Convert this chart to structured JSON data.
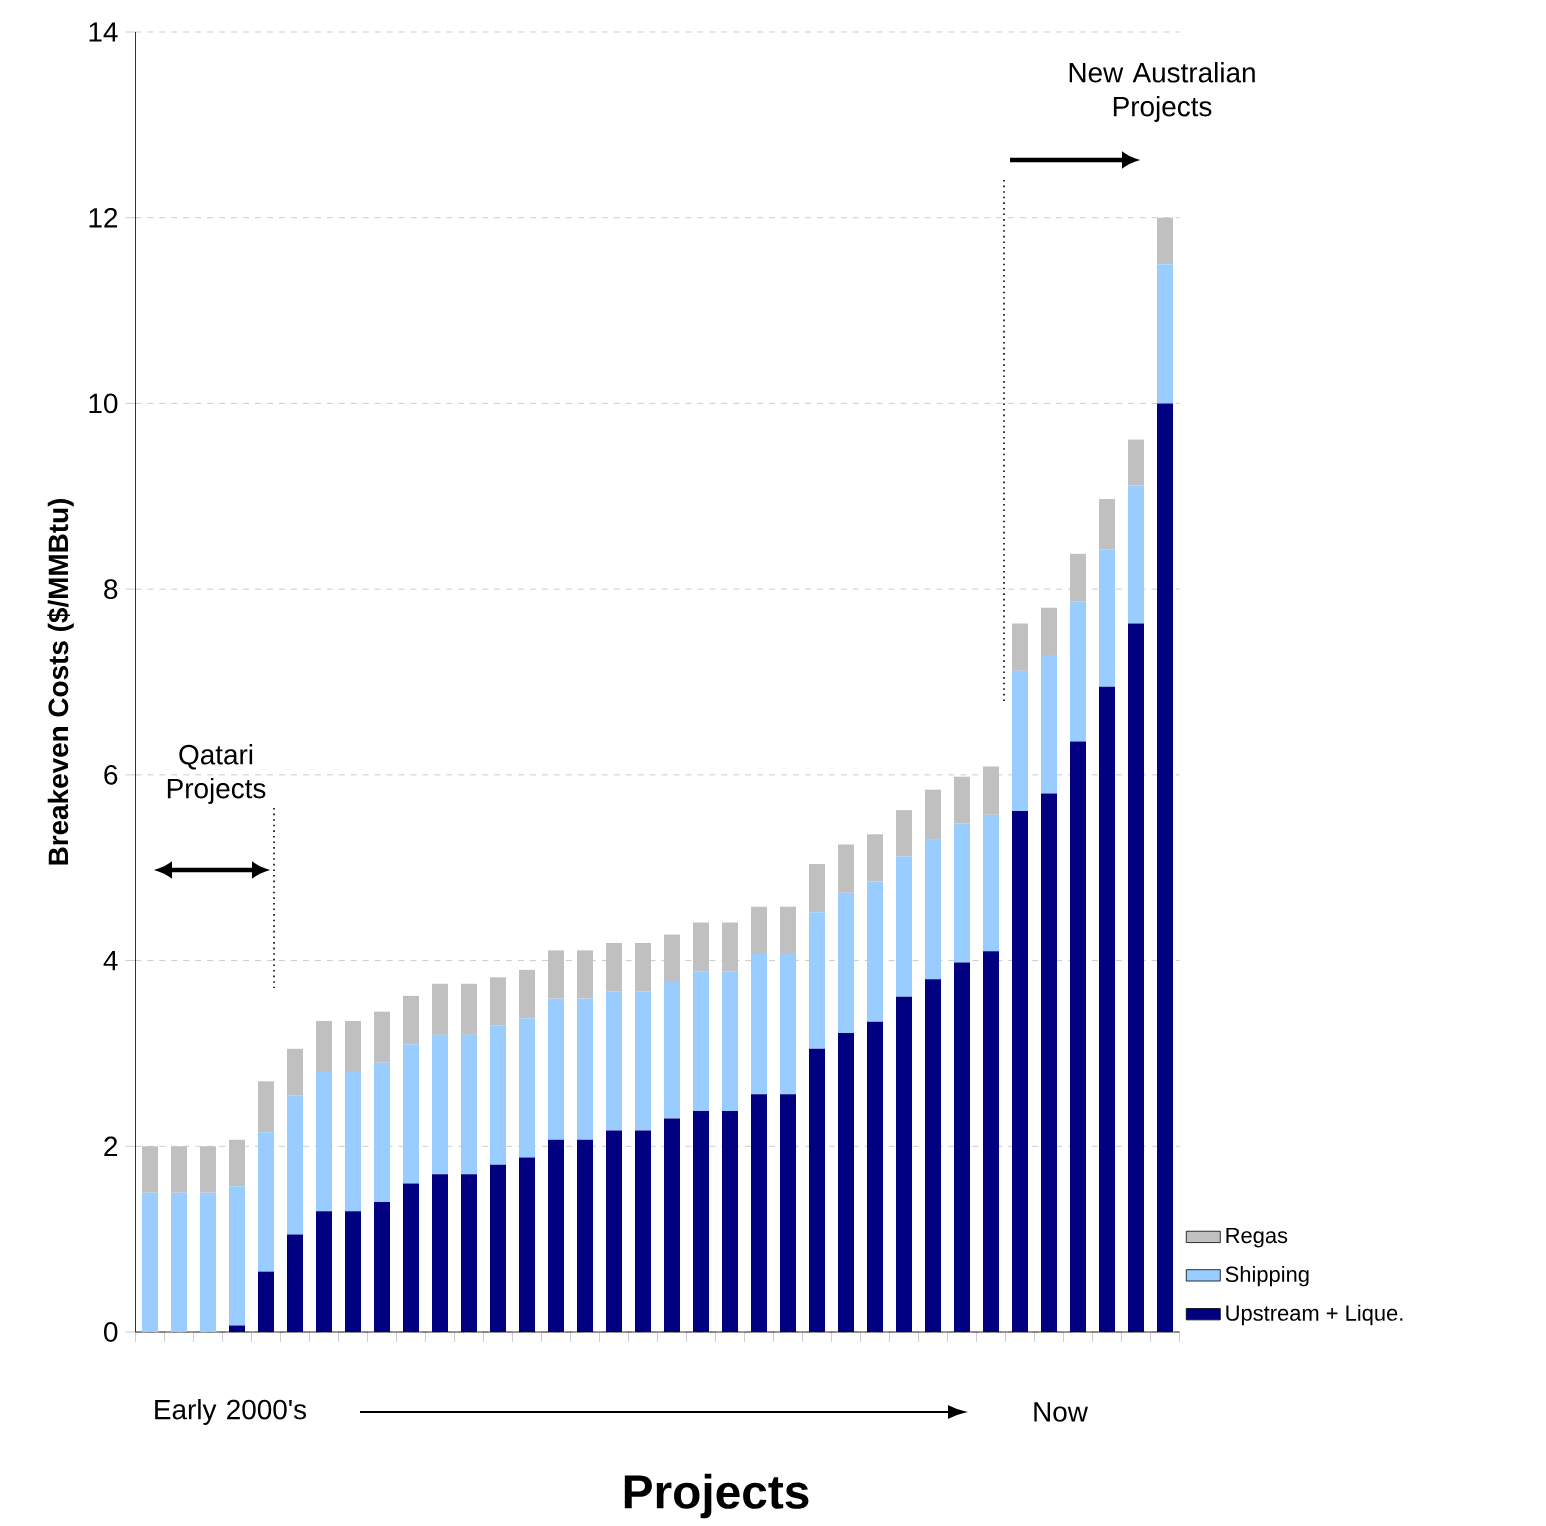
{
  "chart_data": {
    "type": "bar",
    "stacked": true,
    "xlabel": "Projects",
    "ylabel": "Breakeven Costs ($/MMBtu)",
    "categories": [
      null,
      null,
      null,
      null,
      null,
      null,
      null,
      null,
      null,
      null,
      null,
      null,
      null,
      null,
      null,
      null,
      null,
      null,
      null,
      null,
      null,
      null,
      null,
      null,
      null,
      null,
      null,
      null,
      null,
      null,
      null,
      null,
      null,
      null,
      null,
      null
    ],
    "series": [
      {
        "name": "Upstream + Lique.",
        "color": "#000080",
        "values": [
          0,
          0,
          0,
          0.07,
          0.65,
          1.05,
          1.3,
          1.3,
          1.4,
          1.6,
          1.7,
          1.7,
          1.8,
          1.88,
          2.07,
          2.07,
          2.17,
          2.17,
          2.3,
          2.38,
          2.38,
          2.56,
          2.56,
          3.05,
          3.22,
          3.34,
          3.61,
          3.8,
          3.98,
          4.1,
          5.61,
          5.8,
          6.36,
          6.95,
          7.63,
          10.0
        ]
      },
      {
        "name": "Shipping",
        "color": "#99ccff",
        "values": [
          1.5,
          1.5,
          1.5,
          1.5,
          1.5,
          1.5,
          1.5,
          1.5,
          1.5,
          1.5,
          1.5,
          1.5,
          1.5,
          1.5,
          1.52,
          1.52,
          1.5,
          1.5,
          1.48,
          1.5,
          1.5,
          1.51,
          1.51,
          1.47,
          1.51,
          1.51,
          1.51,
          1.5,
          1.5,
          1.47,
          1.51,
          1.49,
          1.51,
          1.48,
          1.49,
          1.5
        ]
      },
      {
        "name": "Regas",
        "color": "#c0c0c0",
        "values": [
          0.5,
          0.5,
          0.5,
          0.5,
          0.55,
          0.5,
          0.55,
          0.55,
          0.55,
          0.52,
          0.55,
          0.55,
          0.52,
          0.52,
          0.52,
          0.52,
          0.52,
          0.52,
          0.5,
          0.53,
          0.53,
          0.51,
          0.51,
          0.52,
          0.52,
          0.51,
          0.5,
          0.54,
          0.5,
          0.52,
          0.51,
          0.51,
          0.51,
          0.54,
          0.49,
          0.5
        ]
      }
    ],
    "ylim": [
      0,
      14
    ],
    "yticks": [
      0,
      2,
      4,
      6,
      8,
      10,
      12,
      14
    ],
    "grid": "y",
    "legend": "bottom right",
    "annotations": [
      "Qatari Projects",
      "New Australian Projects",
      "Early 2000's",
      "Now"
    ]
  }
}
